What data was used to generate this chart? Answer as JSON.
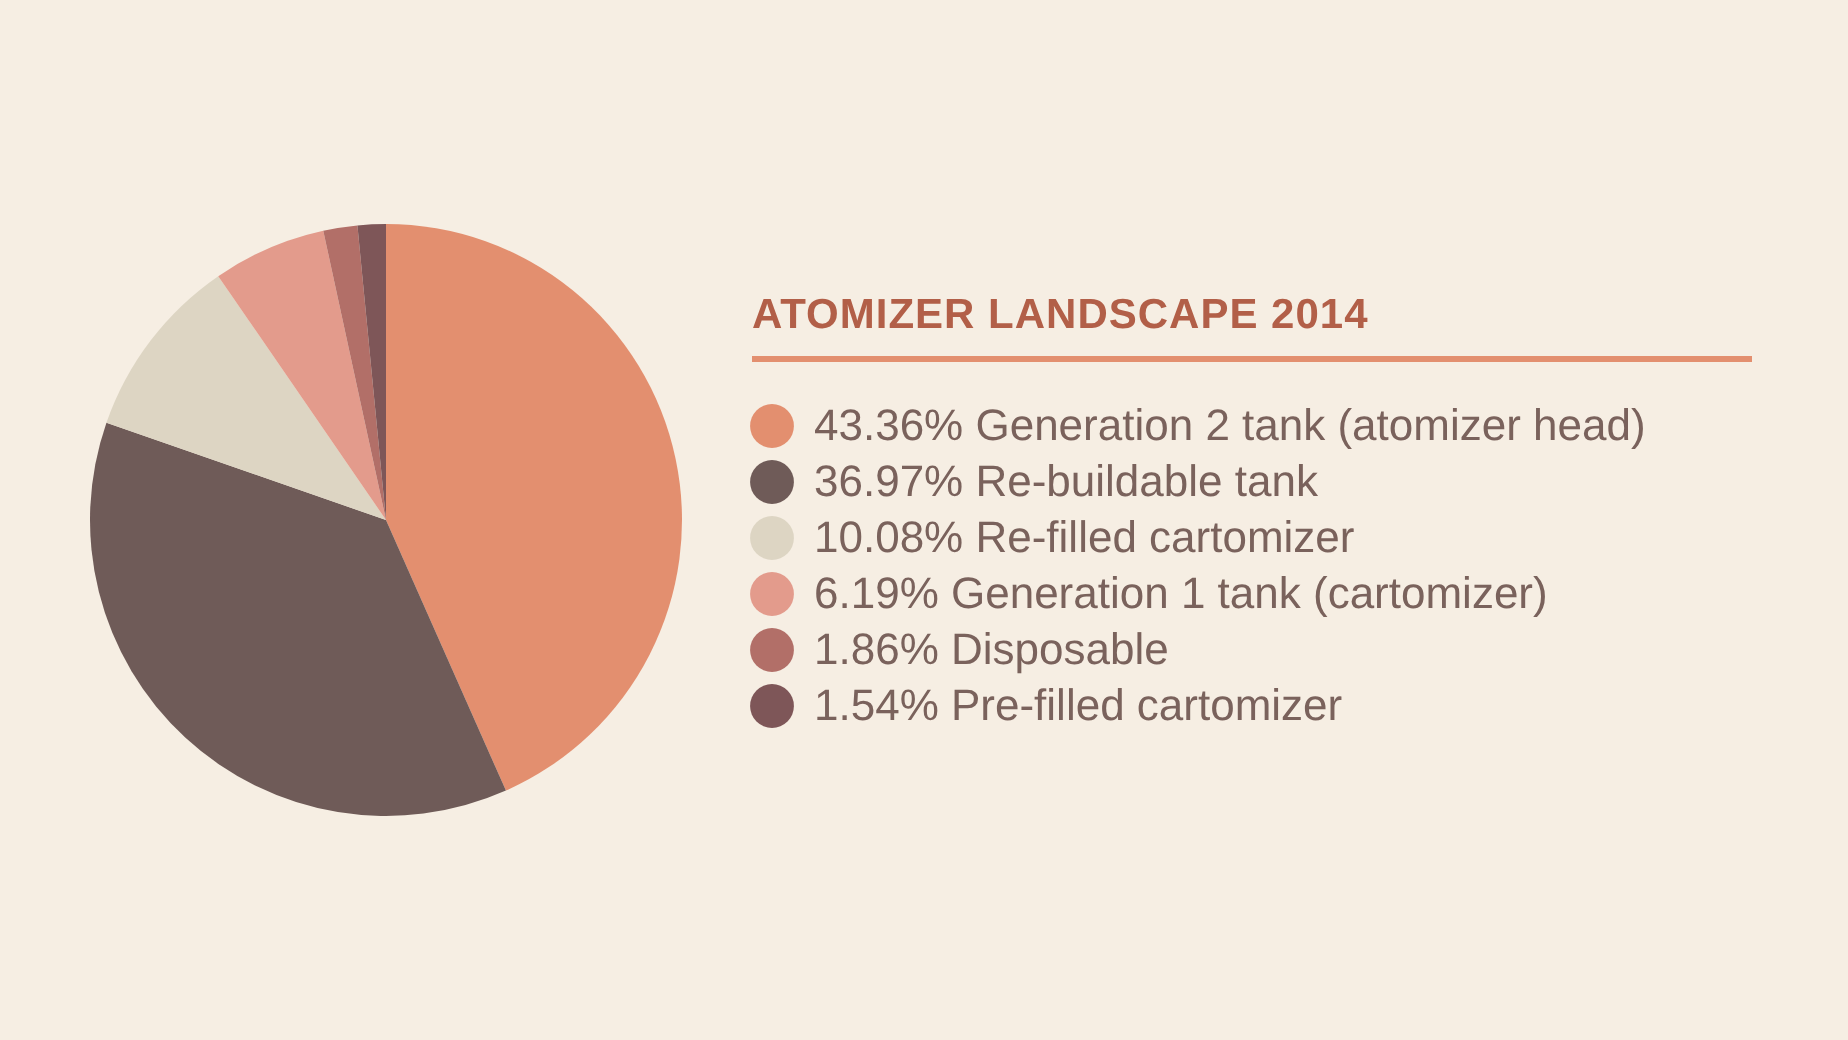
{
  "chart_data": {
    "type": "pie",
    "title": "ATOMIZER LANDSCAPE 2014",
    "categories": [
      "Generation 2 tank (atomizer head)",
      "Re-buildable tank",
      "Re-filled cartomizer",
      "Generation 1 tank (cartomizer)",
      "Disposable",
      "Pre-filled cartomizer"
    ],
    "values": [
      43.36,
      36.97,
      10.08,
      6.19,
      1.86,
      1.54
    ],
    "value_labels": [
      "43.36%",
      "36.97%",
      "10.08%",
      "6.19%",
      "1.86%",
      "1.54%"
    ],
    "colors": [
      "#e38f6f",
      "#6f5b58",
      "#ddd5c3",
      "#e39b8c",
      "#b26f68",
      "#7e5658"
    ],
    "legend": "right"
  }
}
